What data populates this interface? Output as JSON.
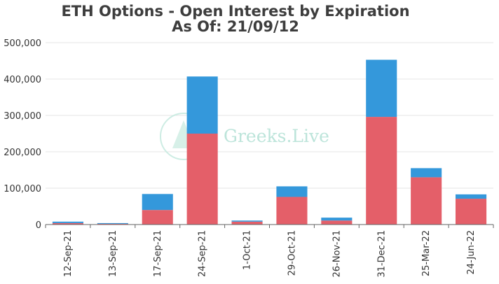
{
  "chart_data": {
    "type": "bar",
    "stacked": true,
    "title": "ETH Options - Open Interest by Expiration",
    "subtitle": "As Of: 21/09/12",
    "xlabel": "",
    "ylabel": "",
    "categories": [
      "12-Sep-21",
      "13-Sep-21",
      "17-Sep-21",
      "24-Sep-21",
      "1-Oct-21",
      "29-Oct-21",
      "26-Nov-21",
      "31-Dec-21",
      "25-Mar-22",
      "24-Jun-22"
    ],
    "series": [
      {
        "values": [
          4000,
          2000,
          40000,
          250000,
          8000,
          76000,
          11000,
          296000,
          130000,
          71000
        ],
        "color": "#e45f69"
      },
      {
        "values": [
          4000,
          2000,
          44000,
          157000,
          3000,
          29000,
          8000,
          157000,
          25000,
          12000
        ],
        "color": "#3498db"
      }
    ],
    "ylim": [
      0,
      500000
    ],
    "yticks": [
      0,
      100000,
      200000,
      300000,
      400000,
      500000
    ],
    "ytick_labels": [
      "0",
      "100,000",
      "200,000",
      "300,000",
      "400,000",
      "500,000"
    ],
    "grid": true,
    "legend": "none"
  },
  "watermark": {
    "text": "Greeks.Live",
    "color": "#b5e2d6"
  }
}
